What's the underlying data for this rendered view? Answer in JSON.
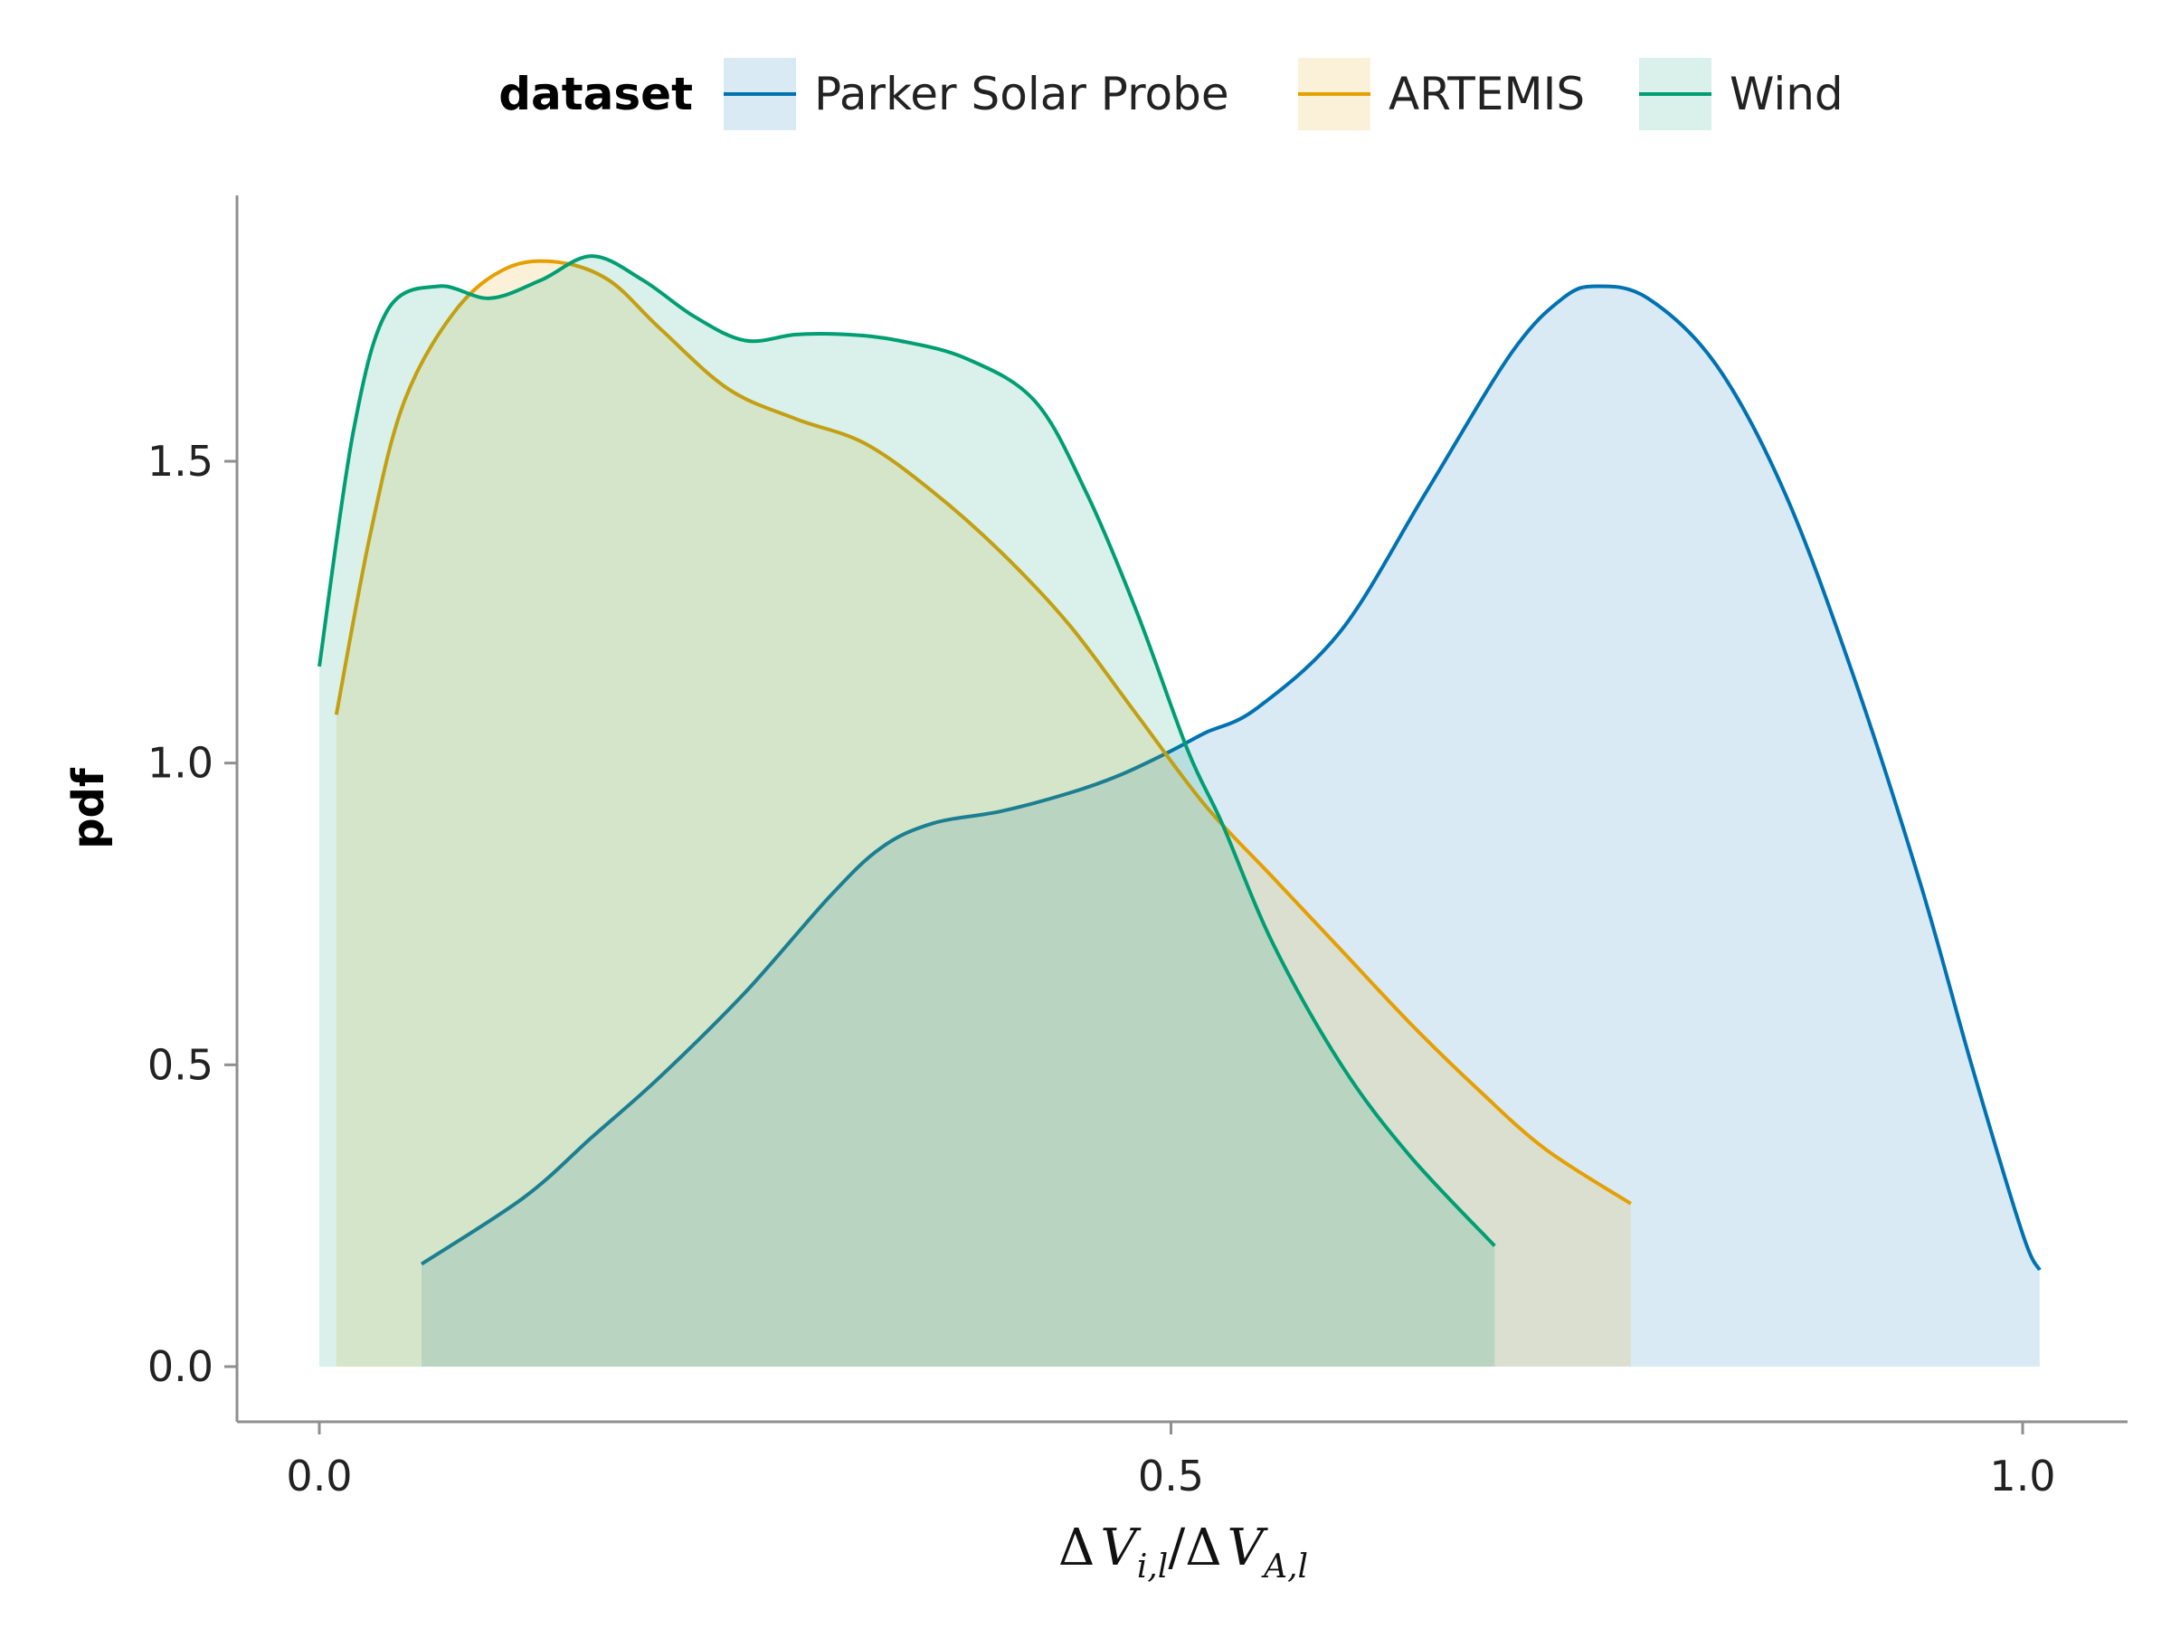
{
  "chart_data": {
    "type": "area",
    "legend": {
      "title": "dataset",
      "placement": "top"
    },
    "ylabel": "pdf",
    "xlabel": {
      "d1": "Δ",
      "v1": "V",
      "s1": "i,l",
      "slash": "/",
      "d2": "Δ",
      "v2": "V",
      "s2": "A,l"
    },
    "xlim": [
      -0.05,
      1.06
    ],
    "ylim": [
      -0.09,
      1.94
    ],
    "xticks": [
      {
        "value": 0.0,
        "label": "0.0"
      },
      {
        "value": 0.5,
        "label": "0.5"
      },
      {
        "value": 1.0,
        "label": "1.0"
      }
    ],
    "yticks": [
      {
        "value": 0.0,
        "label": "0.0"
      },
      {
        "value": 0.5,
        "label": "0.5"
      },
      {
        "value": 1.0,
        "label": "1.0"
      },
      {
        "value": 1.5,
        "label": "1.5"
      }
    ],
    "grid": false,
    "series": [
      {
        "name": "Parker Solar Probe",
        "color": "#0072b2",
        "fill": "#0072b2",
        "fill_opacity": 0.15,
        "points": [
          [
            0.06,
            0.17
          ],
          [
            0.12,
            0.28
          ],
          [
            0.16,
            0.38
          ],
          [
            0.2,
            0.48
          ],
          [
            0.25,
            0.62
          ],
          [
            0.3,
            0.78
          ],
          [
            0.33,
            0.86
          ],
          [
            0.36,
            0.9
          ],
          [
            0.4,
            0.92
          ],
          [
            0.44,
            0.95
          ],
          [
            0.47,
            0.98
          ],
          [
            0.5,
            1.02
          ],
          [
            0.52,
            1.05
          ],
          [
            0.55,
            1.09
          ],
          [
            0.6,
            1.22
          ],
          [
            0.65,
            1.45
          ],
          [
            0.7,
            1.68
          ],
          [
            0.73,
            1.77
          ],
          [
            0.75,
            1.79
          ],
          [
            0.78,
            1.77
          ],
          [
            0.82,
            1.66
          ],
          [
            0.86,
            1.45
          ],
          [
            0.9,
            1.15
          ],
          [
            0.94,
            0.8
          ],
          [
            0.97,
            0.5
          ],
          [
            1.0,
            0.22
          ],
          [
            1.01,
            0.16
          ]
        ]
      },
      {
        "name": "ARTEMIS",
        "color": "#e69f00",
        "fill": "#e69f00",
        "fill_opacity": 0.15,
        "points": [
          [
            0.01,
            1.08
          ],
          [
            0.03,
            1.38
          ],
          [
            0.05,
            1.6
          ],
          [
            0.08,
            1.75
          ],
          [
            0.11,
            1.82
          ],
          [
            0.14,
            1.83
          ],
          [
            0.17,
            1.8
          ],
          [
            0.2,
            1.72
          ],
          [
            0.24,
            1.62
          ],
          [
            0.28,
            1.57
          ],
          [
            0.32,
            1.53
          ],
          [
            0.36,
            1.45
          ],
          [
            0.4,
            1.35
          ],
          [
            0.44,
            1.23
          ],
          [
            0.48,
            1.08
          ],
          [
            0.52,
            0.93
          ],
          [
            0.56,
            0.81
          ],
          [
            0.6,
            0.69
          ],
          [
            0.64,
            0.57
          ],
          [
            0.68,
            0.46
          ],
          [
            0.72,
            0.36
          ],
          [
            0.77,
            0.27
          ]
        ]
      },
      {
        "name": "Wind",
        "color": "#009e73",
        "fill": "#009e73",
        "fill_opacity": 0.15,
        "points": [
          [
            0.0,
            1.16
          ],
          [
            0.02,
            1.55
          ],
          [
            0.04,
            1.75
          ],
          [
            0.07,
            1.79
          ],
          [
            0.1,
            1.77
          ],
          [
            0.13,
            1.8
          ],
          [
            0.16,
            1.84
          ],
          [
            0.19,
            1.8
          ],
          [
            0.22,
            1.74
          ],
          [
            0.25,
            1.7
          ],
          [
            0.28,
            1.71
          ],
          [
            0.31,
            1.71
          ],
          [
            0.34,
            1.7
          ],
          [
            0.38,
            1.67
          ],
          [
            0.42,
            1.6
          ],
          [
            0.45,
            1.45
          ],
          [
            0.48,
            1.25
          ],
          [
            0.51,
            1.02
          ],
          [
            0.53,
            0.9
          ],
          [
            0.56,
            0.7
          ],
          [
            0.6,
            0.5
          ],
          [
            0.64,
            0.35
          ],
          [
            0.69,
            0.2
          ]
        ]
      }
    ]
  }
}
